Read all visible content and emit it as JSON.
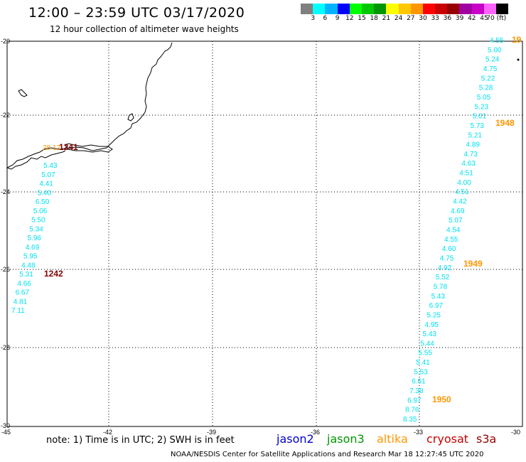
{
  "header": {
    "title": "12:00 – 23:59 UTC 03/17/2020",
    "subtitle": "12 hour collection of altimeter wave heights"
  },
  "legend": {
    "colors": [
      "#808080",
      "#00ffff",
      "#00b4ff",
      "#0000ff",
      "#00ff00",
      "#00c800",
      "#009600",
      "#ffff00",
      "#ffc800",
      "#ff9600",
      "#ff0000",
      "#c80000",
      "#960000",
      "#a000a0",
      "#c800c8",
      "#ff64ff",
      "#000000"
    ],
    "labels": [
      "3",
      "6",
      "9",
      "12",
      "15",
      "18",
      "21",
      "24",
      "27",
      "30",
      "33",
      "36",
      "39",
      "42",
      "45",
      "70 (ft)"
    ]
  },
  "axes": {
    "lat_labels": [
      "-20",
      "-22",
      "-24",
      "-26",
      "-28",
      "-30"
    ],
    "lon_labels": [
      "-45",
      "-42",
      "-39",
      "-36",
      "-33",
      "-30"
    ]
  },
  "tracks": {
    "left_track": [
      "5.43",
      "5.07",
      "4.41",
      "5.40",
      "6.50",
      "5.06",
      "5.50",
      "5.34",
      "5.96",
      "4.69",
      "5.95",
      "4.48",
      "5.31",
      "4.66",
      "6.67",
      "4.81",
      "7.11"
    ],
    "right_track": [
      "4.55",
      "5.00",
      "5.24",
      "4.75",
      "5.22",
      "5.28",
      "5.05",
      "5.23",
      "5.01",
      "5.73",
      "5.21",
      "4.89",
      "4.73",
      "4.63",
      "4.51",
      "4.00",
      "4.51",
      "4.42",
      "4.69",
      "5.07",
      "4.54",
      "4.55",
      "4.60",
      "4.75",
      "4.92",
      "5.52",
      "5.78",
      "5.43",
      "6.97",
      "5.25",
      "4.95",
      "5.43",
      "5.44",
      "5.55",
      "5.41",
      "5.53",
      "6.61",
      "7.38",
      "6.97",
      "8.76",
      "8.35"
    ]
  },
  "time_labels": {
    "t1241": "1241",
    "t1242": "1242",
    "t19": "19",
    "t1948": "1948",
    "t1949": "1949",
    "t1950": "1950",
    "partial": "28.12"
  },
  "note": "note:  1) Time is in UTC;  2) SWH is in feet",
  "satellites": [
    {
      "name": "jason2",
      "color": "#0000cc"
    },
    {
      "name": "jason3",
      "color": "#009600"
    },
    {
      "name": "altika",
      "color": "#ff9600"
    },
    {
      "name": "cryosat",
      "color": "#c80000"
    },
    {
      "name": "s3a",
      "color": "#960000"
    }
  ],
  "footer": "NOAA/NESDIS Center for Satellite Applications and Research    Mar 18 12:27:45 UTC 2020",
  "colors": {
    "track_value": "#00e0f0",
    "time_label_orange": "#ff9600",
    "time_label_dark": "#800000"
  }
}
